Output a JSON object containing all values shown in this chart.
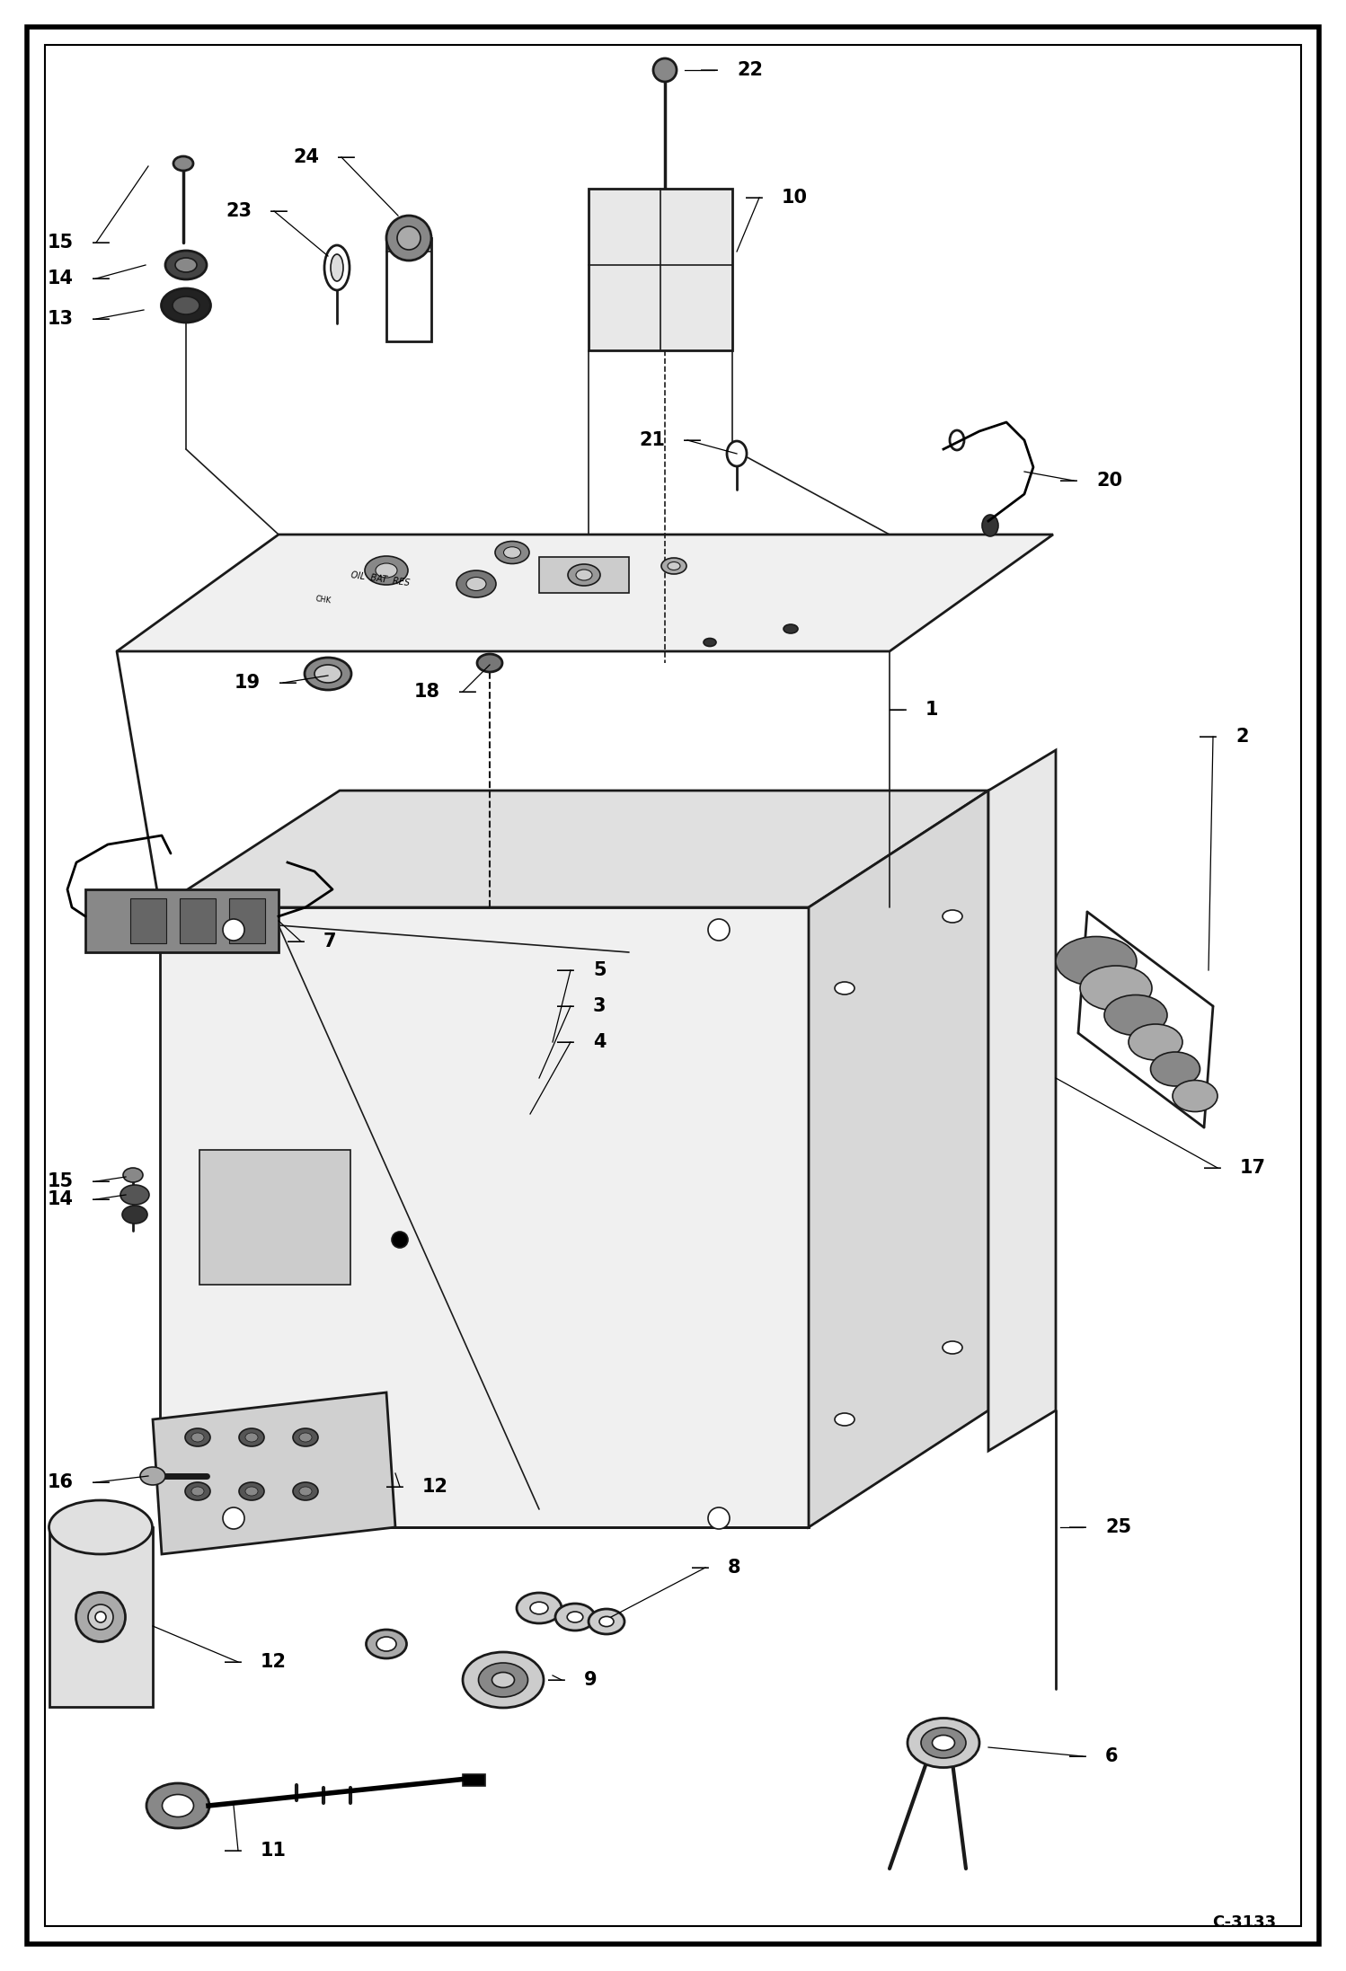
{
  "bg_color": "#ffffff",
  "figure_size": [
    14.98,
    21.94
  ],
  "dpi": 100,
  "diagram_code": "C-3133",
  "line_color": "#1a1a1a",
  "lw_main": 2.0,
  "lw_thin": 1.2,
  "lw_leader": 0.9
}
